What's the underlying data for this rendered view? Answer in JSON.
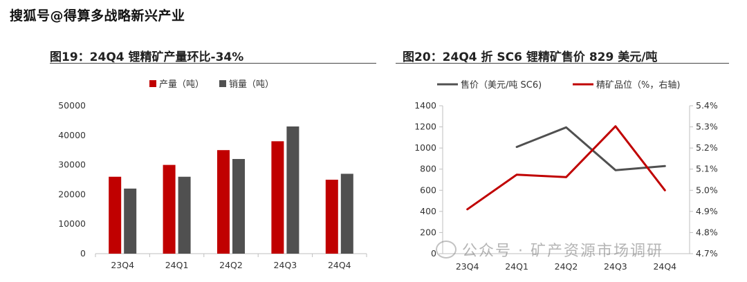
{
  "header": {
    "title": "搜狐号@得算多战略新兴产业"
  },
  "watermark": {
    "text": "公众号 · 矿产资源市场调研",
    "icon": "wechat-icon"
  },
  "colors": {
    "red": "#c00000",
    "gray": "#505050"
  },
  "chart_data": [
    {
      "type": "bar",
      "title": "图19：24Q4 锂精矿产量环比-34%",
      "categories": [
        "23Q4",
        "24Q1",
        "24Q2",
        "24Q3",
        "24Q4"
      ],
      "series": [
        {
          "name": "产量（吨）",
          "values": [
            26000,
            30000,
            35000,
            38000,
            25000
          ],
          "color": "#c00000"
        },
        {
          "name": "销量（吨）",
          "values": [
            22000,
            26000,
            32000,
            43000,
            27000
          ],
          "color": "#505050"
        }
      ],
      "yticks": [
        "0",
        "10000",
        "20000",
        "30000",
        "40000",
        "50000"
      ],
      "ylim": [
        0,
        50000
      ],
      "legend": "top",
      "grid": false
    },
    {
      "type": "line",
      "title": "图20：24Q4 折 SC6 锂精矿售价 829 美元/吨",
      "categories": [
        "23Q4",
        "24Q1",
        "24Q2",
        "24Q3",
        "24Q4"
      ],
      "series": [
        {
          "name": "售价（美元/吨 SC6)",
          "axis": "left",
          "values": [
            null,
            1010,
            1195,
            790,
            829
          ],
          "color": "#505050"
        },
        {
          "name": "精矿品位（%，右轴)",
          "axis": "right",
          "values": [
            4.91,
            5.074,
            5.062,
            5.303,
            5.0
          ],
          "color": "#c00000"
        }
      ],
      "yticks_left": [
        "0",
        "200",
        "400",
        "600",
        "800",
        "1000",
        "1200",
        "1400"
      ],
      "ylim_left": [
        0,
        1400
      ],
      "yticks_right": [
        "4.7%",
        "4.8%",
        "4.9%",
        "5.0%",
        "5.1%",
        "5.2%",
        "5.3%",
        "5.4%"
      ],
      "ylim_right": [
        4.7,
        5.4
      ],
      "legend": "top",
      "grid": false
    }
  ]
}
